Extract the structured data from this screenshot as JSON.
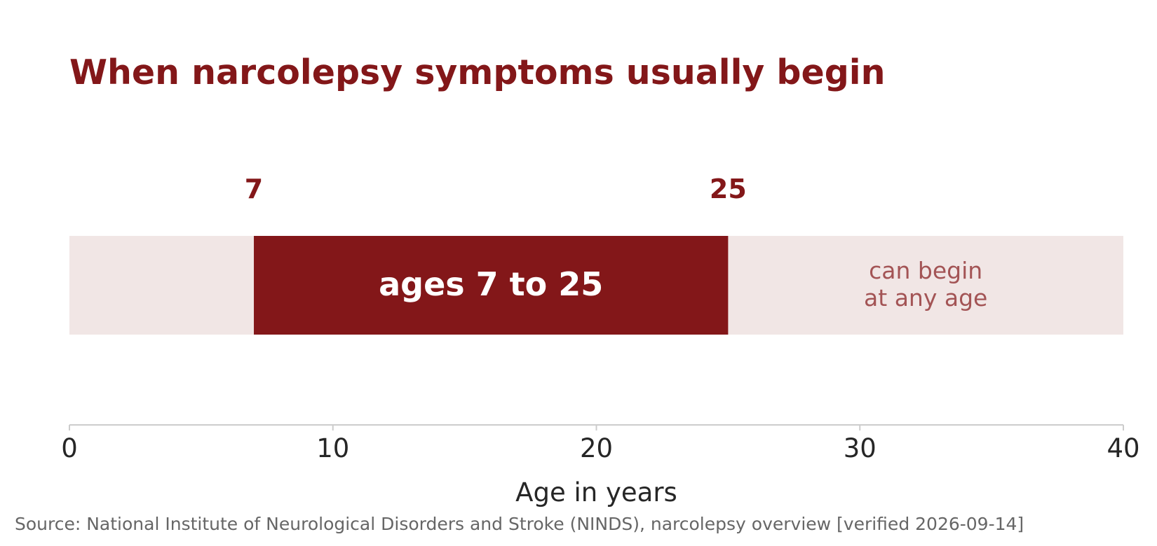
{
  "chart_data": {
    "type": "bar",
    "title": "When narcolepsy symptoms usually begin",
    "xlabel": "Age in years",
    "ylabel": "",
    "xlim": [
      0,
      40
    ],
    "x_ticks": [
      0,
      10,
      20,
      30,
      40
    ],
    "x_tick_labels": [
      "0",
      "10",
      "20",
      "30",
      "40"
    ],
    "grid": false,
    "legend": "none",
    "background_range": {
      "start": 0,
      "end": 40
    },
    "typical_onset_range": {
      "start": 7,
      "end": 25,
      "label": "ages 7 to 25",
      "start_label": "7",
      "end_label": "25"
    },
    "annotation": {
      "lines": [
        "can begin",
        "at any age"
      ]
    },
    "source": "Source: National Institute of Neurological Disorders and Stroke (NINDS), narcolepsy overview [verified 2026-09-14]"
  },
  "colors": {
    "accent": "#831719",
    "background_band": "#f1e6e5",
    "annotation_text": "#a35455",
    "axis_line": "#cccccc",
    "tick_text": "#262626",
    "source_text": "#666666",
    "bar_label_text": "#ffffff"
  }
}
